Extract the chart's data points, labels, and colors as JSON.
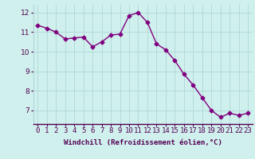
{
  "hours": [
    0,
    1,
    2,
    3,
    4,
    5,
    6,
    7,
    8,
    9,
    10,
    11,
    12,
    13,
    14,
    15,
    16,
    17,
    18,
    19,
    20,
    21,
    22,
    23
  ],
  "values": [
    11.35,
    11.2,
    11.0,
    10.65,
    10.7,
    10.75,
    10.25,
    10.5,
    10.85,
    10.9,
    11.85,
    12.0,
    11.5,
    10.4,
    10.1,
    9.55,
    8.85,
    8.3,
    7.65,
    7.0,
    6.65,
    6.85,
    6.75,
    6.85
  ],
  "line_color": "#800080",
  "marker": "D",
  "marker_size": 2.5,
  "bg_color": "#cff0ec",
  "grid_color": "#b0d8d8",
  "xlabel": "Windchill (Refroidissement éolien,°C)",
  "ylim": [
    6.3,
    12.4
  ],
  "xlim": [
    -0.5,
    23.5
  ],
  "yticks": [
    7,
    8,
    9,
    10,
    11,
    12
  ],
  "xtick_labels": [
    "0",
    "1",
    "2",
    "3",
    "4",
    "5",
    "6",
    "7",
    "8",
    "9",
    "10",
    "11",
    "12",
    "13",
    "14",
    "15",
    "16",
    "17",
    "18",
    "19",
    "20",
    "21",
    "22",
    "23"
  ],
  "xlabel_fontsize": 6.5,
  "tick_fontsize": 6.5,
  "line_width": 1.0
}
